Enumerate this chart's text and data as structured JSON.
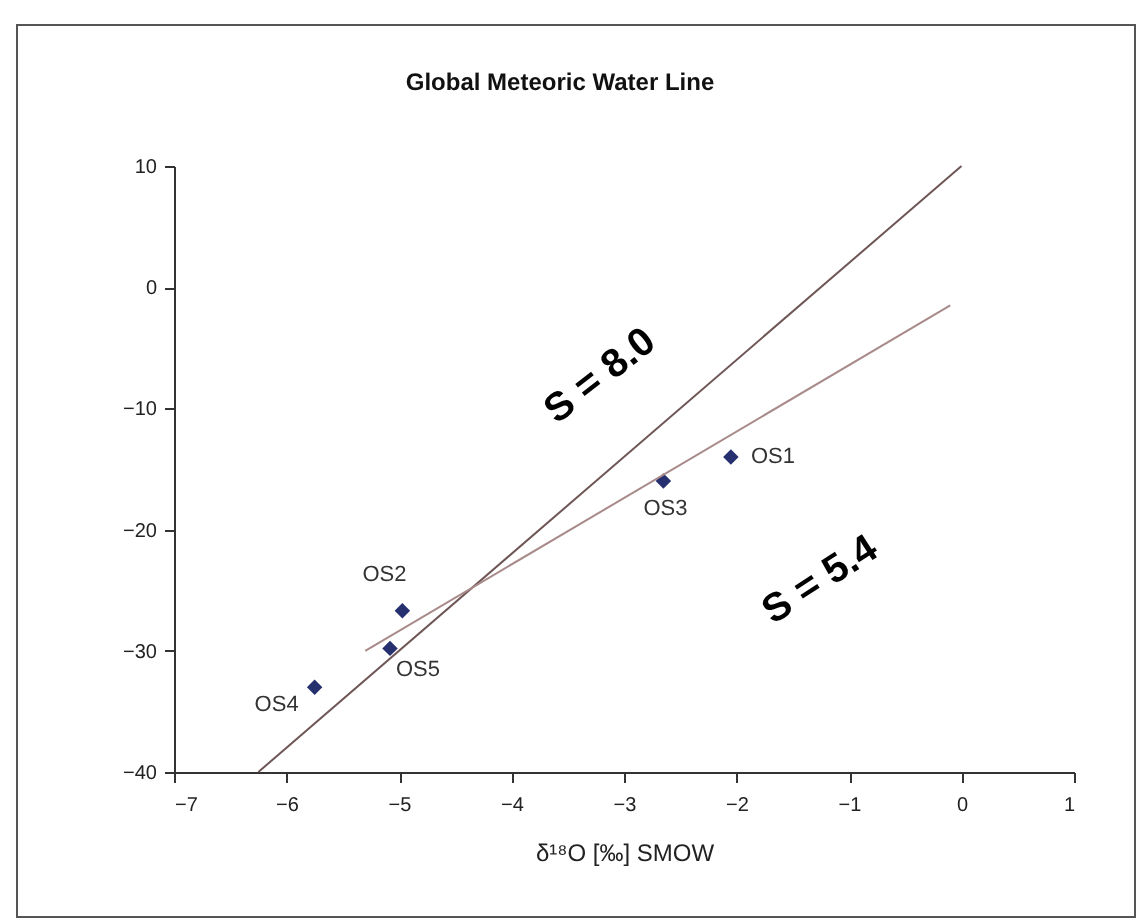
{
  "chart_data": {
    "type": "scatter",
    "title": "Global Meteoric Water Line",
    "xlabel": "δ¹⁸O [‰] SMOW",
    "xlim": [
      -7,
      1
    ],
    "xticks": [
      -7,
      -6,
      -5,
      -4,
      -3,
      -2,
      -1,
      0,
      1
    ],
    "ylim": [
      -40,
      10
    ],
    "yticks": [
      -40,
      -30,
      -20,
      -10,
      0,
      10
    ],
    "grid": false,
    "series": [
      {
        "marker": "diamond",
        "color": "#27306e",
        "x": [
          -2.05,
          -4.97,
          -2.65,
          -5.75,
          -5.08
        ],
        "values": [
          -14,
          -26.7,
          -16,
          -33,
          -29.8
        ]
      },
      {
        "type": "line",
        "color": "#6e5656",
        "x": [
          -6.25,
          0
        ],
        "values": [
          -40,
          10
        ]
      },
      {
        "type": "line",
        "color": "#a88a8a",
        "x": [
          -5.3,
          -0.1
        ],
        "values": [
          -30,
          -1.5
        ]
      }
    ],
    "annotations": [
      "S = 8.0",
      "S = 5.4",
      {
        "text": "OS1",
        "x": -2.05,
        "y": -14
      },
      {
        "text": "OS2",
        "x": -4.97,
        "y": -26.7
      },
      {
        "text": "OS3",
        "x": -2.65,
        "y": -16
      },
      {
        "text": "OS4",
        "x": -5.75,
        "y": -33
      },
      {
        "text": "OS5",
        "x": -5.08,
        "y": -29.8
      }
    ]
  }
}
